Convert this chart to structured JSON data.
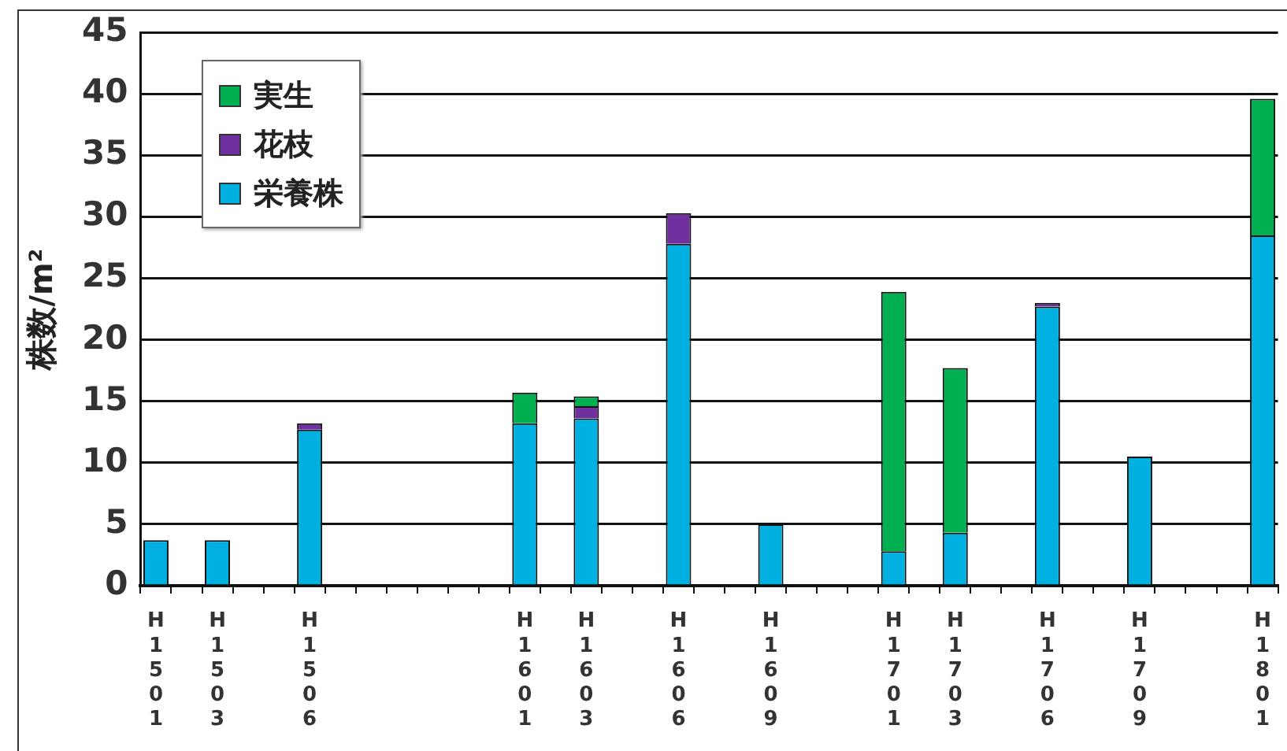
{
  "chart_data": {
    "type": "bar",
    "stacked": true,
    "ylabel": "株数/m²",
    "categories": [
      "H1501",
      null,
      "H1503",
      null,
      null,
      "H1506",
      null,
      null,
      null,
      null,
      null,
      null,
      "H1601",
      null,
      "H1603",
      null,
      null,
      "H1606",
      null,
      null,
      "H1609",
      null,
      null,
      null,
      "H1701",
      null,
      "H1703",
      null,
      null,
      "H1706",
      null,
      null,
      "H1709",
      null,
      null,
      null,
      "H1801"
    ],
    "series": [
      {
        "name": "栄養株",
        "color": "#00b0e0",
        "values": [
          3.7,
          null,
          3.7,
          null,
          null,
          12.7,
          null,
          null,
          null,
          null,
          null,
          null,
          13.2,
          null,
          13.6,
          null,
          null,
          27.8,
          null,
          null,
          5.0,
          null,
          null,
          null,
          2.8,
          null,
          4.3,
          null,
          null,
          22.7,
          null,
          null,
          10.5,
          null,
          null,
          null,
          28.5
        ]
      },
      {
        "name": "花枝",
        "color": "#7030a0",
        "values": [
          null,
          null,
          null,
          null,
          null,
          0.5,
          null,
          null,
          null,
          null,
          null,
          null,
          null,
          null,
          1.0,
          null,
          null,
          2.5,
          null,
          null,
          null,
          null,
          null,
          null,
          null,
          null,
          null,
          null,
          null,
          0.3,
          null,
          null,
          null,
          null,
          null,
          null,
          null
        ]
      },
      {
        "name": "実生",
        "color": "#00b050",
        "values": [
          null,
          null,
          null,
          null,
          null,
          null,
          null,
          null,
          null,
          null,
          null,
          null,
          2.5,
          null,
          0.8,
          null,
          null,
          null,
          null,
          null,
          null,
          null,
          null,
          null,
          21.1,
          null,
          13.4,
          null,
          null,
          null,
          null,
          null,
          null,
          null,
          null,
          null,
          11.1
        ]
      }
    ],
    "ylim": [
      0,
      45
    ],
    "yticks": [
      0,
      5,
      10,
      15,
      20,
      25,
      30,
      35,
      40,
      45
    ],
    "grid": "y",
    "legend": "top left"
  }
}
